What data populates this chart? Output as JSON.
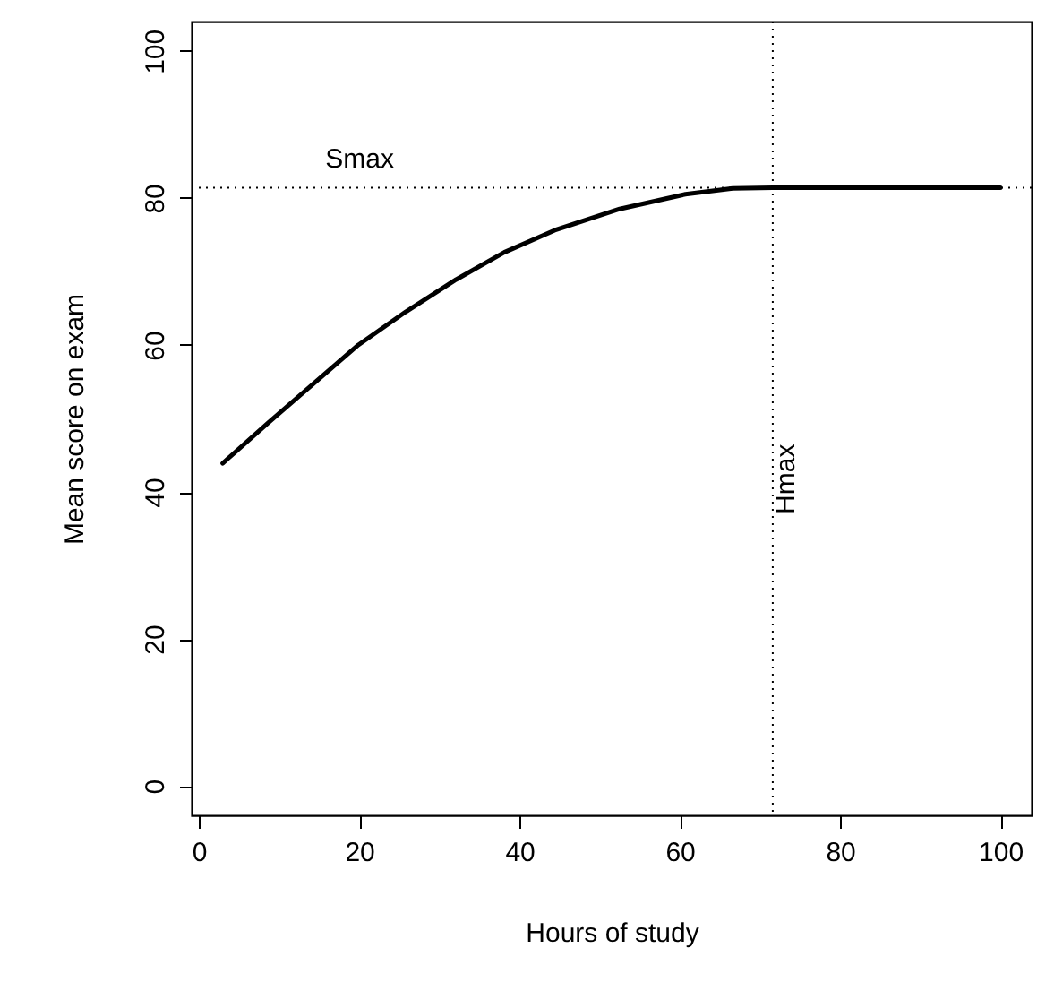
{
  "chart_data": {
    "type": "line",
    "xlabel": "Hours of study",
    "ylabel": "Mean score on exam",
    "x": [
      2.97,
      8.75,
      14.7,
      19.9,
      25.8,
      32.1,
      38.1,
      44.4,
      52.5,
      60.7,
      66.6,
      71.6,
      100
    ],
    "series": [
      {
        "color": "#000000",
        "values": [
          43.9,
          49.5,
          55.1,
          60.0,
          64.5,
          68.9,
          72.6,
          75.6,
          78.5,
          80.5,
          81.3,
          81.4,
          81.4
        ]
      }
    ],
    "xlim": [
      -0.9,
      103.9
    ],
    "ylim": [
      -4,
      104
    ],
    "xticks": [
      0,
      20,
      40,
      60,
      80,
      100
    ],
    "yticks": [
      0,
      20,
      40,
      60,
      80,
      100
    ],
    "ref_lines": [
      {
        "axis": "y",
        "value": 81.4,
        "label": "Smax",
        "color": "#000000",
        "line_style": "dotted"
      },
      {
        "axis": "x",
        "value": 71.6,
        "label": "Hmax",
        "color": "#000000",
        "line_style": "dotted"
      }
    ],
    "grid": false,
    "marker": "none",
    "line_style": "solid"
  }
}
